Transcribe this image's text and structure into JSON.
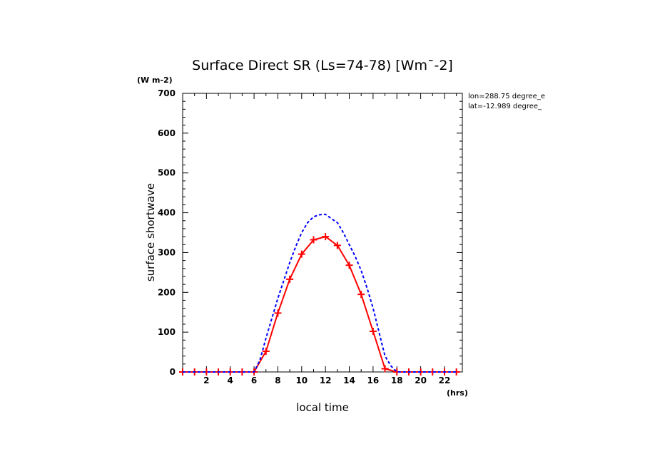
{
  "chart_data": {
    "type": "line",
    "title": "Surface Direct SR (Ls=74-78) [Wm¯-2]",
    "yunit": "(W m-2)",
    "ylabel": "surface shortwave",
    "xlabel": "local time",
    "xunit": "(hrs)",
    "info_lines": [
      "lon=288.75 degree_e",
      "lat=-12.989 degree_"
    ],
    "xlim": [
      0,
      23.5
    ],
    "ylim": [
      0,
      700
    ],
    "xticks": [
      2,
      4,
      6,
      8,
      10,
      12,
      14,
      16,
      18,
      20,
      22
    ],
    "yticks": [
      0,
      100,
      200,
      300,
      400,
      500,
      600,
      700
    ],
    "grid": false,
    "series": [
      {
        "color": "#ff0000",
        "style": "solid",
        "marker": "plus",
        "x": [
          0,
          1,
          2,
          3,
          4,
          5,
          6,
          7,
          8,
          9,
          10,
          11,
          12,
          13,
          14,
          15,
          16,
          17,
          18,
          19,
          20,
          21,
          22,
          23
        ],
        "y": [
          0,
          0,
          0,
          0,
          0,
          0,
          0,
          52,
          148,
          233,
          296,
          332,
          340,
          318,
          268,
          195,
          102,
          8,
          0,
          0,
          0,
          0,
          0,
          0
        ]
      },
      {
        "color": "#0000ff",
        "style": "dashed",
        "marker": "none",
        "x": [
          0,
          1,
          2,
          3,
          4,
          5,
          6,
          6.5,
          7,
          7.5,
          8,
          8.5,
          9,
          9.5,
          10,
          10.5,
          11,
          11.5,
          12,
          12.5,
          13,
          13.5,
          14,
          14.5,
          15,
          15.5,
          16,
          16.5,
          17,
          17.5,
          18,
          19,
          20,
          21,
          22,
          23
        ],
        "y": [
          0,
          0,
          0,
          0,
          0,
          0,
          0,
          30,
          85,
          135,
          185,
          230,
          275,
          315,
          350,
          375,
          390,
          395,
          396,
          385,
          375,
          350,
          320,
          290,
          255,
          210,
          160,
          100,
          40,
          15,
          0,
          0,
          0,
          0,
          0,
          0
        ]
      }
    ]
  }
}
